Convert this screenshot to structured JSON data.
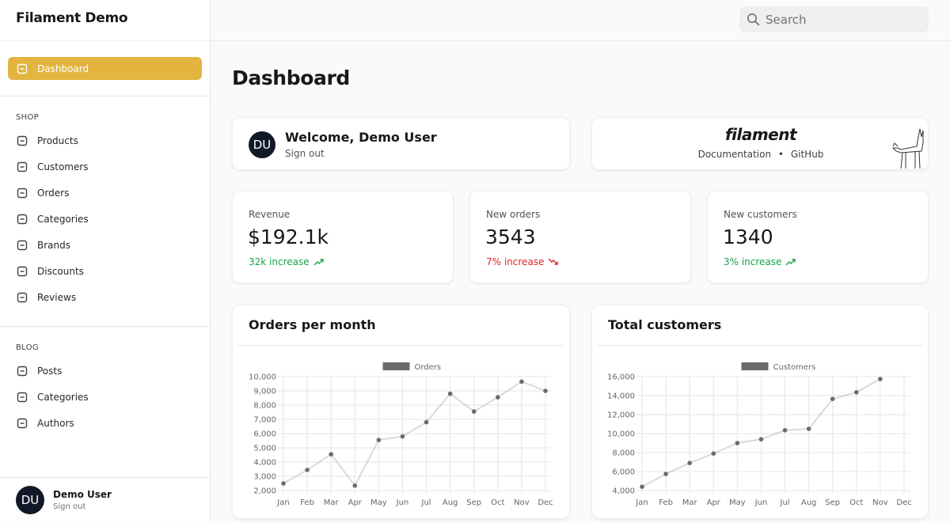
{
  "sidebar": {
    "brand": "Filament Demo",
    "nav": [
      {
        "items": [
          {
            "label": "Dashboard",
            "active": true
          }
        ]
      },
      {
        "label": "SHOP",
        "items": [
          {
            "label": "Products"
          },
          {
            "label": "Customers"
          },
          {
            "label": "Orders"
          },
          {
            "label": "Categories"
          },
          {
            "label": "Brands"
          },
          {
            "label": "Discounts"
          },
          {
            "label": "Reviews"
          }
        ]
      },
      {
        "label": "BLOG",
        "items": [
          {
            "label": "Posts"
          },
          {
            "label": "Categories"
          },
          {
            "label": "Authors"
          }
        ]
      }
    ],
    "user": {
      "initials": "DU",
      "name": "Demo User",
      "action": "Sign out"
    }
  },
  "header": {
    "search_placeholder": "Search"
  },
  "page": {
    "title": "Dashboard"
  },
  "welcome": {
    "initials": "DU",
    "title": "Welcome, Demo User",
    "action": "Sign out"
  },
  "filament": {
    "logo": "filament",
    "links": [
      "Documentation",
      "GitHub"
    ],
    "separator": "•"
  },
  "stats": [
    {
      "label": "Revenue",
      "value": "$192.1k",
      "change": "32k increase",
      "trend": "up"
    },
    {
      "label": "New orders",
      "value": "3543",
      "change": "7% increase",
      "trend": "down"
    },
    {
      "label": "New customers",
      "value": "1340",
      "change": "3% increase",
      "trend": "up"
    }
  ],
  "chart_data": [
    {
      "type": "line",
      "title": "Orders per month",
      "categories": [
        "Jan",
        "Feb",
        "Mar",
        "Apr",
        "May",
        "Jun",
        "Jul",
        "Aug",
        "Sep",
        "Oct",
        "Nov",
        "Dec"
      ],
      "series": [
        {
          "name": "Orders",
          "color": "#6b6b6b",
          "values": [
            2500,
            3450,
            4550,
            2350,
            5550,
            5800,
            6800,
            8800,
            7550,
            8550,
            9650,
            9000
          ]
        }
      ],
      "ylim": [
        2000,
        10000
      ],
      "yticks": [
        {
          "value": 2000,
          "label": "2,000"
        },
        {
          "value": 3000,
          "label": "3,000"
        },
        {
          "value": 4000,
          "label": "4,000"
        },
        {
          "value": 5000,
          "label": "5,000"
        },
        {
          "value": 6000,
          "label": "6,000"
        },
        {
          "value": 7000,
          "label": "7,000"
        },
        {
          "value": 8000,
          "label": "8,000"
        },
        {
          "value": 9000,
          "label": "9,000"
        },
        {
          "value": 10000,
          "label": "10,000"
        }
      ],
      "grid": true,
      "legend": "top"
    },
    {
      "type": "line",
      "title": "Total customers",
      "categories": [
        "Jan",
        "Feb",
        "Mar",
        "Apr",
        "May",
        "Jun",
        "Jul",
        "Aug",
        "Sep",
        "Oct",
        "Nov",
        "Dec"
      ],
      "series": [
        {
          "name": "Customers",
          "color": "#6b6b6b",
          "values": [
            4400,
            5750,
            6900,
            7900,
            9000,
            9400,
            10350,
            10500,
            13650,
            14350,
            15750,
            null
          ]
        }
      ],
      "ylim": [
        4000,
        16000
      ],
      "yticks": [
        {
          "value": 4000,
          "label": "4,000"
        },
        {
          "value": 6000,
          "label": "6,000"
        },
        {
          "value": 8000,
          "label": "8,000"
        },
        {
          "value": 10000,
          "label": "10,000"
        },
        {
          "value": 12000,
          "label": "12,000"
        },
        {
          "value": 14000,
          "label": "14,000"
        },
        {
          "value": 16000,
          "label": "16,000"
        }
      ],
      "grid": true,
      "legend": "top"
    }
  ]
}
